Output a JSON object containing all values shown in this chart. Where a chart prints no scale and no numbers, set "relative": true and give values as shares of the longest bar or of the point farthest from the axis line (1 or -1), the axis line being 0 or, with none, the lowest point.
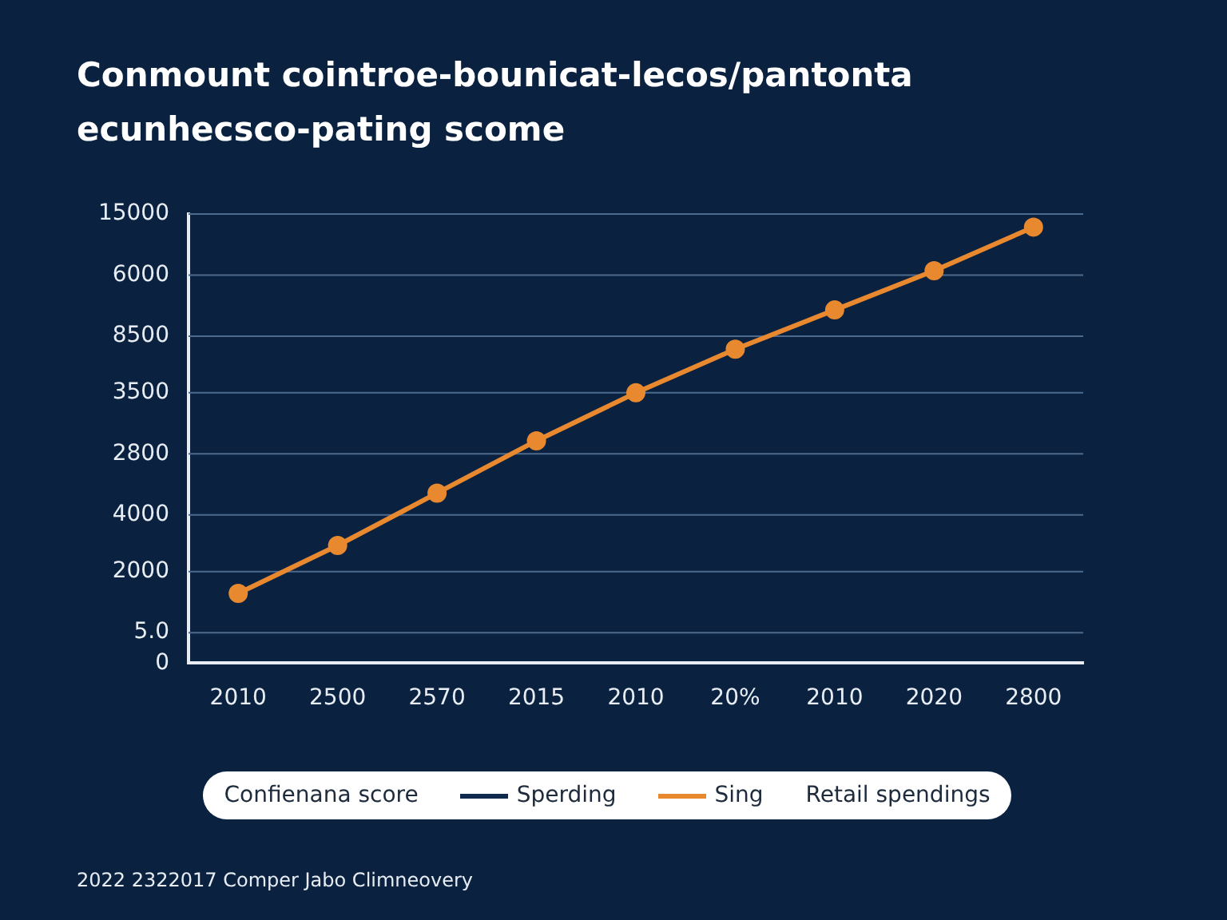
{
  "chart_data": {
    "type": "line",
    "title": "Conmount cointroe-bounicat-lecos/pantonta ecunhecsco-pating scome",
    "categories": [
      "2010",
      "2500",
      "2570",
      "2015",
      "2010",
      "20%",
      "2010",
      "2020",
      "2800"
    ],
    "relative": true,
    "series": [
      {
        "name": "Sperding",
        "color": "#0f2a4d",
        "values": [
          null,
          null,
          null,
          null,
          null,
          null,
          null,
          null,
          null
        ]
      },
      {
        "name": "Sing",
        "color": "#e8892f",
        "values": [
          0.16,
          0.27,
          0.39,
          0.51,
          0.62,
          0.72,
          0.81,
          0.9,
          1
        ]
      }
    ],
    "ref_lines": [
      {
        "axis": "y",
        "value": 0.07,
        "color": "#4d6a8c"
      },
      {
        "axis": "y",
        "value": 0.21,
        "color": "#4d6a8c"
      },
      {
        "axis": "y",
        "value": 0.34,
        "color": "#4d6a8c"
      },
      {
        "axis": "y",
        "value": 0.48,
        "color": "#4d6a8c"
      },
      {
        "axis": "y",
        "value": 0.62,
        "color": "#4d6a8c"
      },
      {
        "axis": "y",
        "value": 0.75,
        "color": "#4d6a8c"
      },
      {
        "axis": "y",
        "value": 0.89,
        "color": "#4d6a8c"
      },
      {
        "axis": "y",
        "value": 1.03,
        "color": "#4d6a8c"
      }
    ],
    "legend": "bottom",
    "marker": "circle",
    "line_style": "solid",
    "annotations": [
      "Confienana score",
      "Retail spendings",
      "2022 2322017 Comper Jabo Climneovery",
      "0",
      "5.0",
      "2000",
      "4000",
      "2800",
      "3500",
      "8500",
      "6000",
      "15000"
    ]
  }
}
